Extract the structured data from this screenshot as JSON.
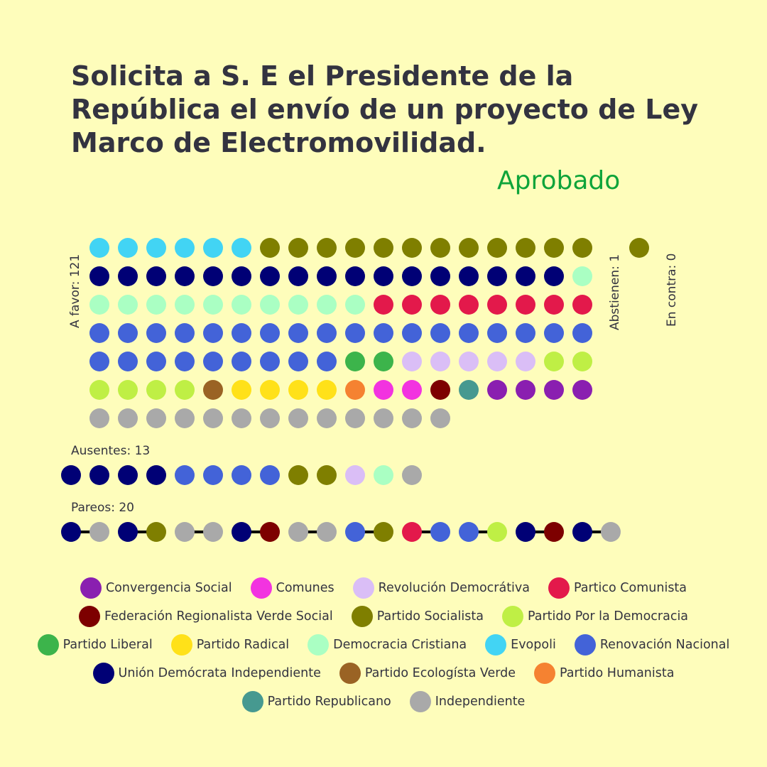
{
  "title": "Solicita a S. E el Presidente de la República el envío de un proyecto de Ley Marco de Electromovilidad.",
  "result": "Aprobado",
  "labels": {
    "favor": "A favor: 121",
    "abstienen": "Abstienen: 1",
    "contra": "En contra: 0",
    "ausentes": "Ausentes: 13",
    "pareos": "Pareos: 20"
  },
  "colors": {
    "background": "#FEFDBB",
    "result": "#0EA43A",
    "title": "#333340"
  },
  "chart_data": {
    "type": "dot-matrix",
    "parties": [
      {
        "key": "CS",
        "name": "Convergencia Social",
        "color": "#8A1FB0"
      },
      {
        "key": "COM",
        "name": "Comunes",
        "color": "#F233E0"
      },
      {
        "key": "RD",
        "name": "Revolución Democrátiva",
        "color": "#DABEF6"
      },
      {
        "key": "PC",
        "name": "Partico Comunista",
        "color": "#E3194B"
      },
      {
        "key": "FRVS",
        "name": "Federación Regionalista Verde Social",
        "color": "#7D0000"
      },
      {
        "key": "PS",
        "name": "Partido Socialista",
        "color": "#7F7F00"
      },
      {
        "key": "PPD",
        "name": "Partido Por la Democracia",
        "color": "#BFEF45"
      },
      {
        "key": "PL",
        "name": "Partido Liberal",
        "color": "#3CB44B"
      },
      {
        "key": "PR",
        "name": "Partido Radical",
        "color": "#FFE119"
      },
      {
        "key": "DC",
        "name": "Democracia Cristiana",
        "color": "#AAFFC3"
      },
      {
        "key": "EVO",
        "name": "Evopoli",
        "color": "#42D4F4"
      },
      {
        "key": "RN",
        "name": "Renovación Nacional",
        "color": "#4363D8"
      },
      {
        "key": "UDI",
        "name": "Unión Demócrata Independiente",
        "color": "#000075"
      },
      {
        "key": "PEV",
        "name": "Partido Ecologísta Verde",
        "color": "#9A6324"
      },
      {
        "key": "PH",
        "name": "Partido Humanista",
        "color": "#F58231"
      },
      {
        "key": "REP",
        "name": "Partido Republicano",
        "color": "#469990"
      },
      {
        "key": "IND",
        "name": "Independiente",
        "color": "#A9A9A9"
      }
    ],
    "legend_rows": [
      [
        "CS",
        "COM",
        "RD",
        "PC"
      ],
      [
        "FRVS",
        "PS",
        "PPD"
      ],
      [
        "PL",
        "PR",
        "DC",
        "EVO",
        "RN"
      ],
      [
        "UDI",
        "PEV",
        "PH"
      ],
      [
        "REP",
        "IND"
      ]
    ],
    "favor": [
      "EVO",
      "EVO",
      "EVO",
      "EVO",
      "EVO",
      "EVO",
      "PS",
      "PS",
      "PS",
      "PS",
      "PS",
      "PS",
      "PS",
      "PS",
      "PS",
      "PS",
      "PS",
      "PS",
      "UDI",
      "UDI",
      "UDI",
      "UDI",
      "UDI",
      "UDI",
      "UDI",
      "UDI",
      "UDI",
      "UDI",
      "UDI",
      "UDI",
      "UDI",
      "UDI",
      "UDI",
      "UDI",
      "UDI",
      "DC",
      "DC",
      "DC",
      "DC",
      "DC",
      "DC",
      "DC",
      "DC",
      "DC",
      "DC",
      "DC",
      "PC",
      "PC",
      "PC",
      "PC",
      "PC",
      "PC",
      "PC",
      "PC",
      "RN",
      "RN",
      "RN",
      "RN",
      "RN",
      "RN",
      "RN",
      "RN",
      "RN",
      "RN",
      "RN",
      "RN",
      "RN",
      "RN",
      "RN",
      "RN",
      "RN",
      "RN",
      "RN",
      "RN",
      "RN",
      "RN",
      "RN",
      "RN",
      "RN",
      "RN",
      "RN",
      "PL",
      "PL",
      "RD",
      "RD",
      "RD",
      "RD",
      "RD",
      "PPD",
      "PPD",
      "PPD",
      "PPD",
      "PPD",
      "PPD",
      "PEV",
      "PR",
      "PR",
      "PR",
      "PR",
      "PH",
      "COM",
      "COM",
      "FRVS",
      "REP",
      "CS",
      "CS",
      "CS",
      "CS",
      "IND",
      "IND",
      "IND",
      "IND",
      "IND",
      "IND",
      "IND",
      "IND",
      "IND",
      "IND",
      "IND",
      "IND",
      "IND"
    ],
    "abstienen": [
      "PS"
    ],
    "contra": [],
    "ausentes": [
      "UDI",
      "UDI",
      "UDI",
      "UDI",
      "RN",
      "RN",
      "RN",
      "RN",
      "PS",
      "PS",
      "RD",
      "DC",
      "IND"
    ],
    "pareos": [
      [
        "UDI",
        "IND"
      ],
      [
        "UDI",
        "PS"
      ],
      [
        "IND",
        "IND"
      ],
      [
        "UDI",
        "FRVS"
      ],
      [
        "IND",
        "IND"
      ],
      [
        "RN",
        "PS"
      ],
      [
        "PC",
        "RN"
      ],
      [
        "RN",
        "PPD"
      ],
      [
        "UDI",
        "FRVS"
      ],
      [
        "UDI",
        "IND"
      ]
    ]
  }
}
